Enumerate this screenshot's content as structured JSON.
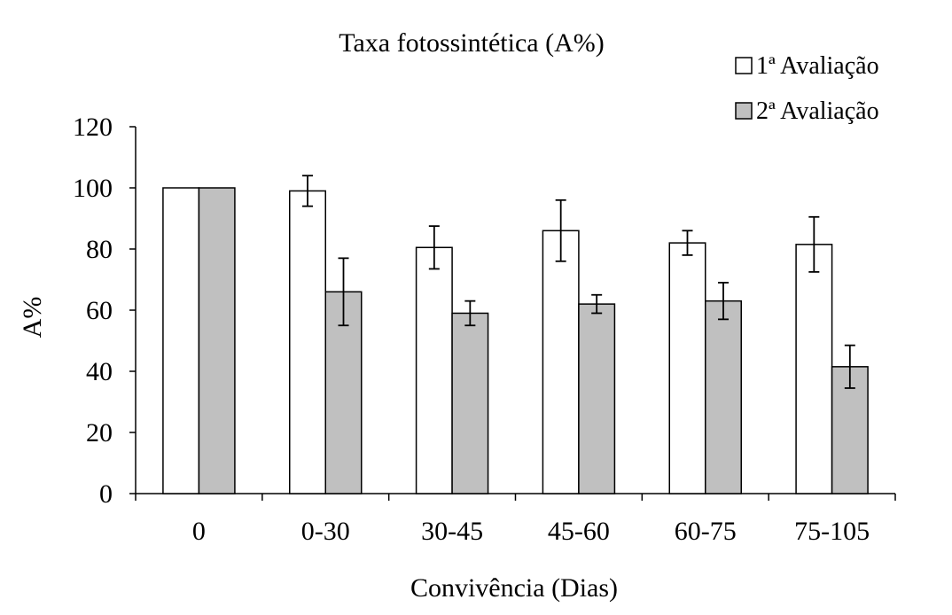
{
  "chart_data": {
    "type": "bar",
    "title": "Taxa fotossintética (A%)",
    "xlabel": "Convivência (Dias)",
    "ylabel": "A%",
    "categories": [
      "0",
      "0-30",
      "30-45",
      "45-60",
      "60-75",
      "75-105"
    ],
    "ylim": [
      0,
      120
    ],
    "yticks": [
      0,
      20,
      40,
      60,
      80,
      100,
      120
    ],
    "grid": false,
    "legend_position": "top-right",
    "series": [
      {
        "name": "1ª Avaliação",
        "color": "#ffffff",
        "values": [
          100,
          99,
          80.5,
          86,
          82,
          81.5
        ],
        "errors": [
          0,
          5,
          7,
          10,
          4,
          9
        ]
      },
      {
        "name": "2ª Avaliação",
        "color": "#c0c0c0",
        "values": [
          100,
          66,
          59,
          62,
          63,
          41.5
        ],
        "errors": [
          0,
          11,
          4,
          3,
          6,
          7
        ]
      }
    ]
  }
}
